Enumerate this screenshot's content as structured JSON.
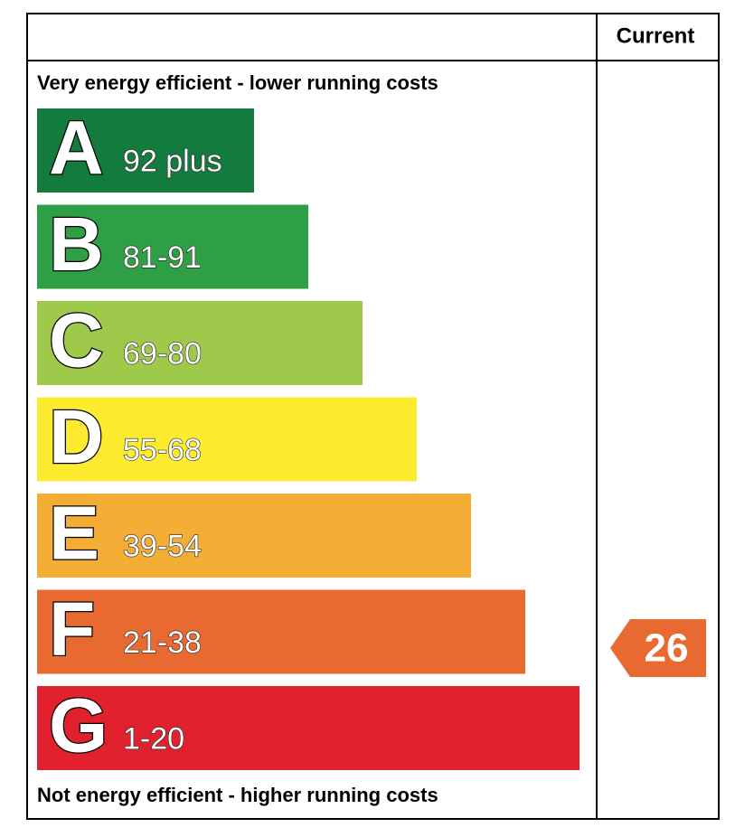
{
  "header": {
    "column": "Current"
  },
  "top_label": "Very energy efficient - lower running costs",
  "bottom_label": "Not energy efficient - higher running costs",
  "bands": [
    {
      "letter": "A",
      "range": "92 plus",
      "color": "#147b3e"
    },
    {
      "letter": "B",
      "range": "81-91",
      "color": "#2f9f45"
    },
    {
      "letter": "C",
      "range": "69-80",
      "color": "#9ec94b"
    },
    {
      "letter": "D",
      "range": "55-68",
      "color": "#fdeb2f"
    },
    {
      "letter": "E",
      "range": "39-54",
      "color": "#f4ad35"
    },
    {
      "letter": "F",
      "range": "21-38",
      "color": "#e96a31"
    },
    {
      "letter": "G",
      "range": "1-20",
      "color": "#e1212e"
    }
  ],
  "current": {
    "value": "26",
    "color": "#e96a31"
  }
}
